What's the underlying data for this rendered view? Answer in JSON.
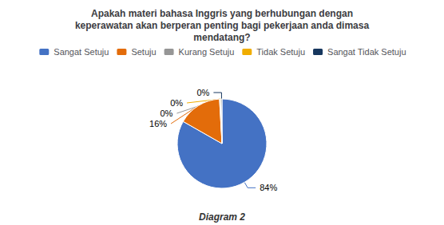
{
  "chart_data": {
    "type": "pie",
    "title": "Apakah materi bahasa Inggris yang berhubungan dengan\nkeperawatan akan berperan penting bagi pekerjaan anda dimasa\nmendatang?",
    "categories": [
      "Sangat Setuju",
      "Setuju",
      "Kurang Setuju",
      "Tidak Setuju",
      "Sangat Tidak Setuju"
    ],
    "values": [
      84,
      16,
      0.3,
      0.3,
      0.3
    ],
    "value_labels": [
      "84%",
      "16%",
      "0%",
      "0%",
      "0%"
    ],
    "colors": [
      "#4472C4",
      "#E36C0A",
      "#969696",
      "#F0AD00",
      "#17375E"
    ],
    "data_labels": true,
    "legend": "top",
    "annotations": [
      "Diagram 2"
    ]
  }
}
